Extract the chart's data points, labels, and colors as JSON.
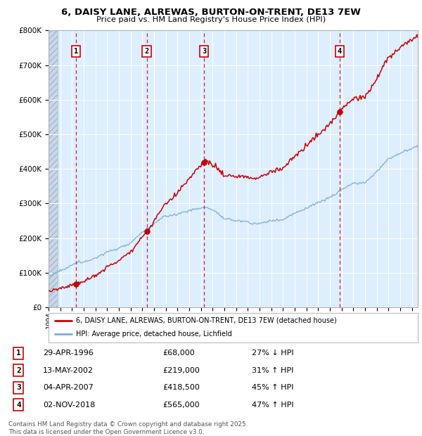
{
  "title_line1": "6, DAISY LANE, ALREWAS, BURTON-ON-TRENT, DE13 7EW",
  "title_line2": "Price paid vs. HM Land Registry's House Price Index (HPI)",
  "xlim_start": 1994.0,
  "xlim_end": 2025.5,
  "ylim_min": 0,
  "ylim_max": 800000,
  "sale_dates": [
    1996.33,
    2002.37,
    2007.26,
    2018.84
  ],
  "sale_prices": [
    68000,
    219000,
    418500,
    565000
  ],
  "sale_labels": [
    "1",
    "2",
    "3",
    "4"
  ],
  "sale_info": [
    {
      "label": "1",
      "date": "29-APR-1996",
      "price": "£68,000",
      "pct": "27% ↓ HPI"
    },
    {
      "label": "2",
      "date": "13-MAY-2002",
      "price": "£219,000",
      "pct": "31% ↑ HPI"
    },
    {
      "label": "3",
      "date": "04-APR-2007",
      "price": "£418,500",
      "pct": "45% ↑ HPI"
    },
    {
      "label": "4",
      "date": "02-NOV-2018",
      "price": "£565,000",
      "pct": "47% ↑ HPI"
    }
  ],
  "legend_line1": "6, DAISY LANE, ALREWAS, BURTON-ON-TRENT, DE13 7EW (detached house)",
  "legend_line2": "HPI: Average price, detached house, Lichfield",
  "footer": "Contains HM Land Registry data © Crown copyright and database right 2025.\nThis data is licensed under the Open Government Licence v3.0.",
  "sale_color": "#cc0000",
  "hpi_color": "#7bafd4",
  "dashed_color": "#cc0000",
  "bg_plot": "#ddeeff",
  "ytick_labels": [
    "£0",
    "£100K",
    "£200K",
    "£300K",
    "£400K",
    "£500K",
    "£600K",
    "£700K",
    "£800K"
  ],
  "ytick_values": [
    0,
    100000,
    200000,
    300000,
    400000,
    500000,
    600000,
    700000,
    800000
  ]
}
